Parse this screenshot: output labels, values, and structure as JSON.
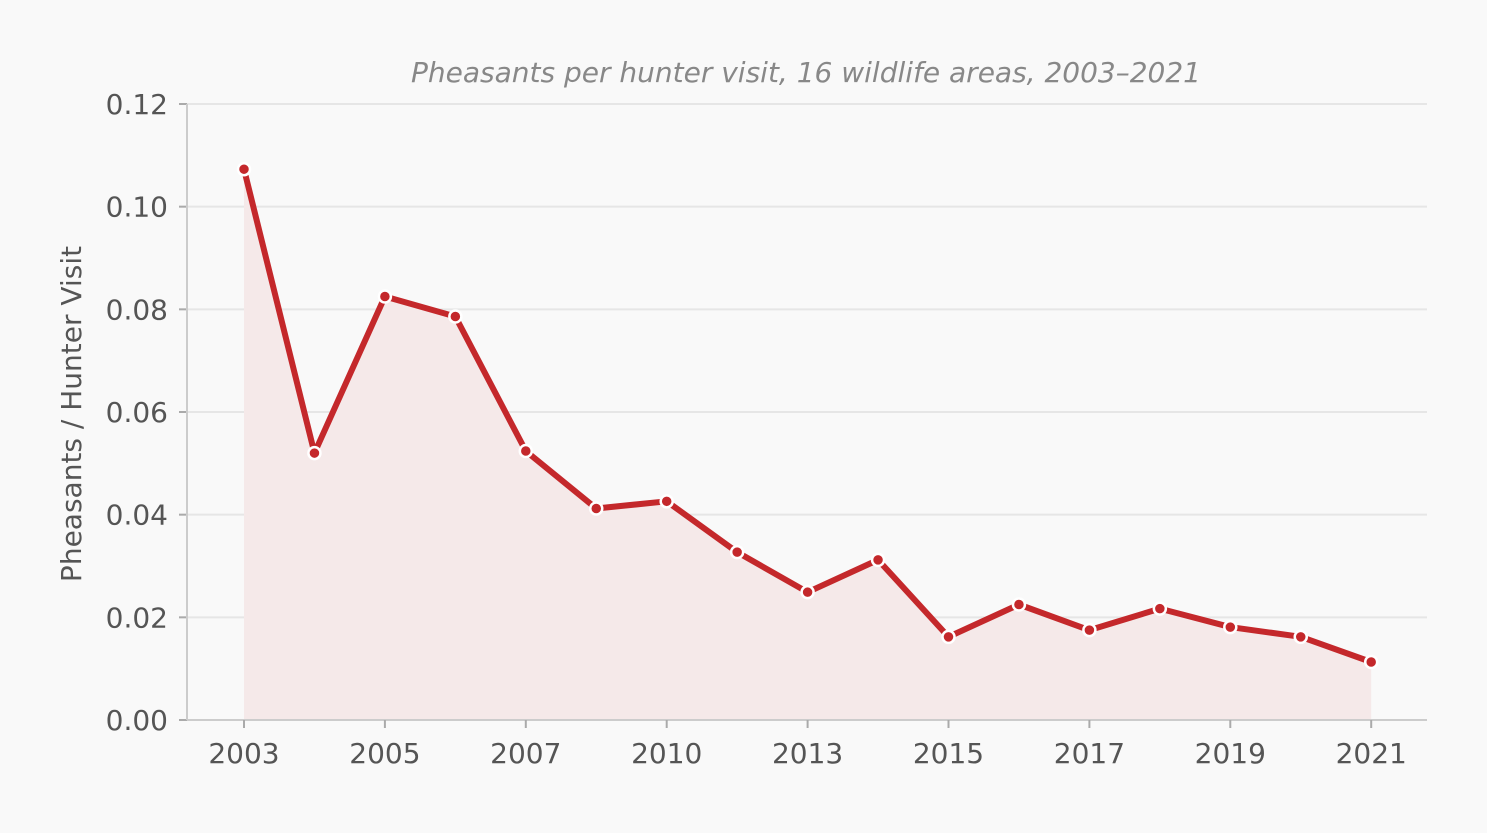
{
  "chart_data": {
    "type": "line",
    "title": "Pheasants per hunter visit, 16 wildlife areas, 2003–2021",
    "xlabel": "",
    "ylabel": "Pheasants / Hunter Visit",
    "ylim": [
      0,
      0.12
    ],
    "yticks": [
      "0.00",
      "0.02",
      "0.04",
      "0.06",
      "0.08",
      "0.10",
      "0.12"
    ],
    "xticks": [
      "2003",
      "2005",
      "2007",
      "2010",
      "2013",
      "2015",
      "2017",
      "2019",
      "2021"
    ],
    "x_tick_indices": [
      0,
      2,
      4,
      6,
      8,
      10,
      12,
      14,
      16
    ],
    "grid": "horizontal",
    "series": [
      {
        "values": [
          0.1073,
          0.052,
          0.0825,
          0.0786,
          0.0524,
          0.0412,
          0.0426,
          0.0327,
          0.0249,
          0.0312,
          0.0162,
          0.0225,
          0.0175,
          0.0217,
          0.0181,
          0.0162,
          0.0113
        ]
      }
    ],
    "colors": {
      "line": "#c4282b",
      "fill": "#f5e9e9",
      "marker_edge": "#ffffff"
    }
  }
}
